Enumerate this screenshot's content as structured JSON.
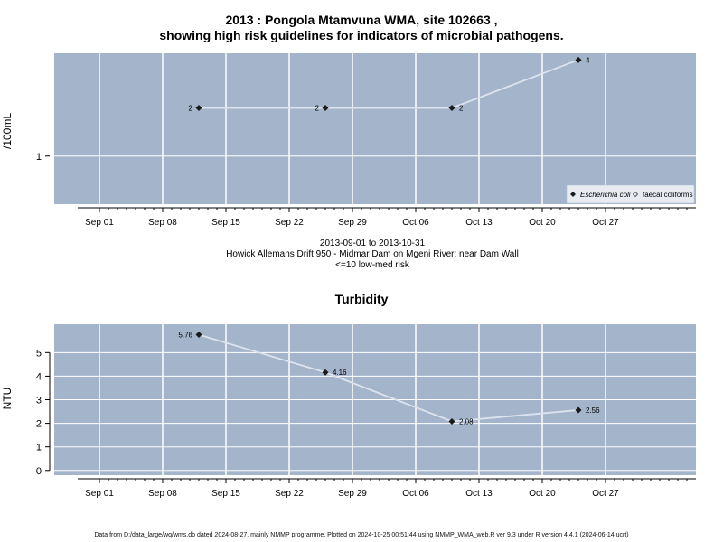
{
  "figure": {
    "title_line1": "2013 : Pongola Mtamvuna WMA, site 102663 ,",
    "title_line2": "showing high risk guidelines for indicators of microbial pathogens.",
    "subtitle_line1": "2013-09-01 to 2013-10-31",
    "subtitle_line2": "Howick Allemans Drift 950 - Midmar Dam on Mgeni River: near Dam Wall",
    "subtitle_line3": "<=10 low-med risk",
    "panel2_title": "Turbidity",
    "footer": "Data from D:/data_large/wq/wms.db dated 2024-08-27, mainly NMMP programme. Plotted on 2024-10-25 00:51:44 using NMMP_WMA_web.R ver 9.3 under R version 4.4.1 (2024-06-14 ucrt)"
  },
  "chart_data": [
    {
      "type": "line",
      "title": "2013 : Pongola Mtamvuna WMA, site 102663 , showing high risk guidelines for indicators of microbial pathogens.",
      "ylabel": "/100mL",
      "ylog": true,
      "ylim": [
        0.5,
        4.4
      ],
      "yticks": [
        {
          "value": 1,
          "label": "1"
        }
      ],
      "xticks": [
        "Sep 01",
        "Sep 08",
        "Sep 15",
        "Sep 22",
        "Sep 29",
        "Oct 06",
        "Oct 13",
        "Oct 20",
        "Oct 27"
      ],
      "grid": true,
      "legend": {
        "position": "bottom-right",
        "entries": [
          "Escherichia coli",
          "faecal coliforms"
        ]
      },
      "series": [
        {
          "name": "Escherichia coli",
          "x": [
            "2013-09-12",
            "2013-09-26",
            "2013-10-10",
            "2013-10-24"
          ],
          "values": [
            2,
            2,
            2,
            4
          ],
          "labels": [
            "2",
            "2",
            "2",
            "4"
          ]
        }
      ]
    },
    {
      "type": "line",
      "title": "Turbidity",
      "ylabel": "NTU",
      "ylim": [
        -0.2,
        6.2
      ],
      "yticks": [
        {
          "value": 0,
          "label": "0"
        },
        {
          "value": 1,
          "label": "1"
        },
        {
          "value": 2,
          "label": "2"
        },
        {
          "value": 3,
          "label": "3"
        },
        {
          "value": 4,
          "label": "4"
        },
        {
          "value": 5,
          "label": "5"
        }
      ],
      "xticks": [
        "Sep 01",
        "Sep 08",
        "Sep 15",
        "Sep 22",
        "Sep 29",
        "Oct 06",
        "Oct 13",
        "Oct 20",
        "Oct 27"
      ],
      "grid": true,
      "series": [
        {
          "x": [
            "2013-09-12",
            "2013-09-26",
            "2013-10-10",
            "2013-10-24"
          ],
          "values": [
            5.76,
            4.16,
            2.08,
            2.56
          ],
          "labels": [
            "5.76",
            "4.16",
            "2.08",
            "2.56"
          ]
        }
      ]
    }
  ]
}
